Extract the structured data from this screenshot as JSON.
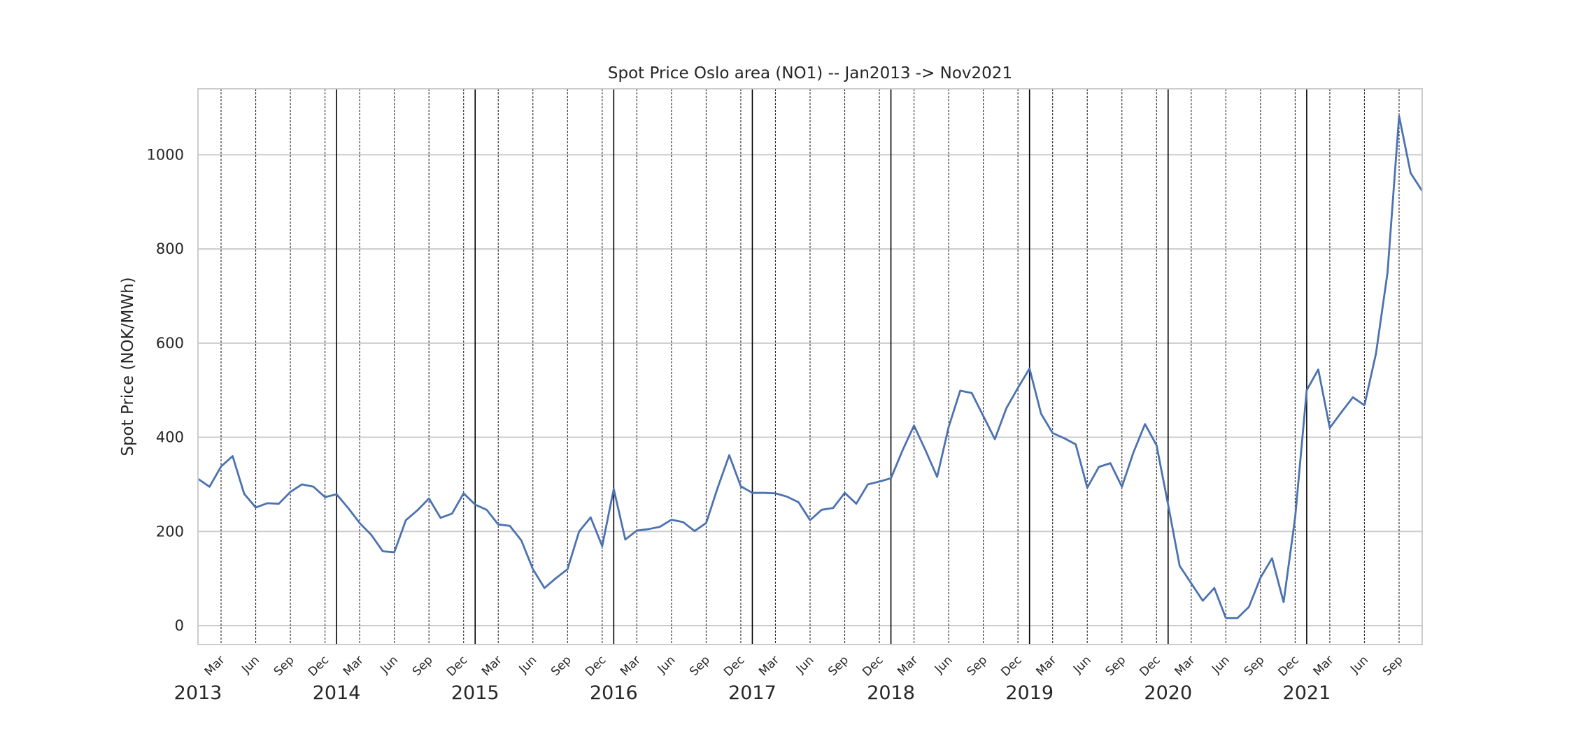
{
  "chart_data": {
    "type": "line",
    "title": "Spot Price Oslo area (NO1) -- Jan2013 -> Nov2021",
    "xlabel": "",
    "ylabel": "Spot Price (NOK/MWh)",
    "xlim": [
      "2013-01",
      "2021-11"
    ],
    "ylim": [
      -40,
      1140
    ],
    "yticks": [
      0,
      200,
      400,
      600,
      800,
      1000
    ],
    "year_labels": [
      "2013",
      "2014",
      "2015",
      "2016",
      "2017",
      "2018",
      "2019",
      "2020",
      "2021"
    ],
    "month_labels": [
      "Mar",
      "Jun",
      "Sep",
      "Dec"
    ],
    "grid": true,
    "legend": "none",
    "colors": {
      "line": "#4c72b0",
      "grid": "#cccccc",
      "year_line": "#000000",
      "month_line": "#262626"
    },
    "series": [
      {
        "x": [
          "2013-01",
          "2013-02",
          "2013-03",
          "2013-04",
          "2013-05",
          "2013-06",
          "2013-07",
          "2013-08",
          "2013-09",
          "2013-10",
          "2013-11",
          "2013-12",
          "2014-01",
          "2014-02",
          "2014-03",
          "2014-04",
          "2014-05",
          "2014-06",
          "2014-07",
          "2014-08",
          "2014-09",
          "2014-10",
          "2014-11",
          "2014-12",
          "2015-01",
          "2015-02",
          "2015-03",
          "2015-04",
          "2015-05",
          "2015-06",
          "2015-07",
          "2015-08",
          "2015-09",
          "2015-10",
          "2015-11",
          "2015-12",
          "2016-01",
          "2016-02",
          "2016-03",
          "2016-04",
          "2016-05",
          "2016-06",
          "2016-07",
          "2016-08",
          "2016-09",
          "2016-10",
          "2016-11",
          "2016-12",
          "2017-01",
          "2017-02",
          "2017-03",
          "2017-04",
          "2017-05",
          "2017-06",
          "2017-07",
          "2017-08",
          "2017-09",
          "2017-10",
          "2017-11",
          "2017-12",
          "2018-01",
          "2018-02",
          "2018-03",
          "2018-04",
          "2018-05",
          "2018-06",
          "2018-07",
          "2018-08",
          "2018-09",
          "2018-10",
          "2018-11",
          "2018-12",
          "2019-01",
          "2019-02",
          "2019-03",
          "2019-04",
          "2019-05",
          "2019-06",
          "2019-07",
          "2019-08",
          "2019-09",
          "2019-10",
          "2019-11",
          "2019-12",
          "2020-01",
          "2020-02",
          "2020-03",
          "2020-04",
          "2020-05",
          "2020-06",
          "2020-07",
          "2020-08",
          "2020-09",
          "2020-10",
          "2020-11",
          "2020-12",
          "2021-01",
          "2021-02",
          "2021-03",
          "2021-04",
          "2021-05",
          "2021-06",
          "2021-07",
          "2021-08",
          "2021-09",
          "2021-10",
          "2021-11"
        ],
        "values": [
          312,
          295,
          338,
          360,
          280,
          251,
          260,
          259,
          284,
          300,
          295,
          273,
          279,
          250,
          218,
          193,
          158,
          156,
          224,
          245,
          270,
          229,
          238,
          281,
          257,
          246,
          215,
          212,
          181,
          120,
          80,
          101,
          120,
          200,
          230,
          169,
          290,
          183,
          202,
          205,
          210,
          225,
          220,
          201,
          218,
          293,
          362,
          296,
          282,
          282,
          281,
          274,
          262,
          224,
          246,
          250,
          282,
          259,
          300,
          306,
          313,
          372,
          425,
          372,
          316,
          422,
          499,
          494,
          445,
          396,
          462,
          505,
          546,
          450,
          409,
          398,
          385,
          293,
          337,
          345,
          295,
          368,
          428,
          383,
          257,
          127,
          90,
          53,
          80,
          16,
          16,
          40,
          102,
          143,
          50,
          230,
          500,
          544,
          420,
          453,
          485,
          468,
          578,
          750,
          1082,
          961,
          923
        ]
      }
    ]
  }
}
